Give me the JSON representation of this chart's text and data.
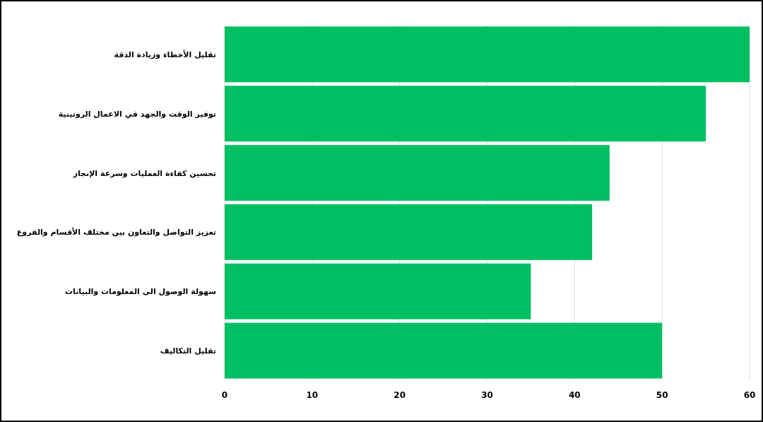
{
  "chart_data": {
    "type": "bar",
    "orientation": "horizontal",
    "categories": [
      "تقليل الأخطاء وزيادة الدقة",
      "توفير الوقت والجهد في الاعمال الروتينية",
      "تحسين كفاءة العمليات وسرعة الإنجاز",
      "تعزيز التواصل والتعاون بين مختلف الأقسام والفروع",
      "سهولة الوصول الى المعلومات والبيانات",
      "تقليل التكاليف"
    ],
    "values": [
      60,
      55,
      44,
      42,
      35,
      50
    ],
    "color": "#00bf63",
    "xlim": [
      0,
      60
    ],
    "xticks": [
      0,
      10,
      20,
      30,
      40,
      50,
      60
    ],
    "grid": "x"
  }
}
